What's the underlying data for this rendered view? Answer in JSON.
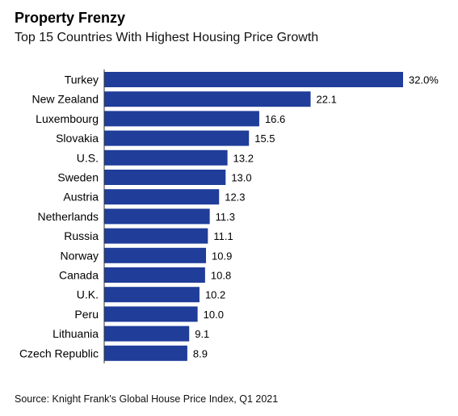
{
  "header": {
    "title": "Property Frenzy",
    "subtitle": "Top 15 Countries With Highest Housing Price Growth"
  },
  "footer": {
    "source": "Source: Knight Frank's Global House Price Index, Q1 2021"
  },
  "colors": {
    "bar": "#1f3d99"
  },
  "chart_data": {
    "type": "bar",
    "orientation": "horizontal",
    "title": "Property Frenzy",
    "subtitle": "Top 15 Countries With Highest Housing Price Growth",
    "categories": [
      "Turkey",
      "New Zealand",
      "Luxembourg",
      "Slovakia",
      "U.S.",
      "Sweden",
      "Austria",
      "Netherlands",
      "Russia",
      "Norway",
      "Canada",
      "U.K.",
      "Peru",
      "Lithuania",
      "Czech Republic"
    ],
    "values": [
      32.0,
      22.1,
      16.6,
      15.5,
      13.2,
      13.0,
      12.3,
      11.3,
      11.1,
      10.9,
      10.8,
      10.2,
      10.0,
      9.1,
      8.9
    ],
    "value_labels": [
      "32.0%",
      "22.1",
      "16.6",
      "15.5",
      "13.2",
      "13.0",
      "12.3",
      "11.3",
      "11.1",
      "10.9",
      "10.8",
      "10.2",
      "10.0",
      "9.1",
      "8.9"
    ],
    "xlim": [
      0,
      32
    ],
    "grid": false,
    "legend": "none"
  }
}
